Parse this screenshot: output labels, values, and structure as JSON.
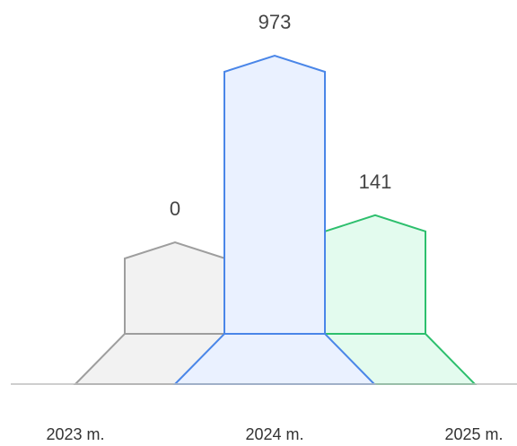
{
  "chart_data": {
    "type": "bar",
    "categories": [
      "2023 m.",
      "2024 m.",
      "2025 m."
    ],
    "values": [
      0,
      973,
      141
    ],
    "title": "",
    "xlabel": "",
    "ylabel": "",
    "grid": false,
    "colors": {
      "2023 m.": {
        "stroke": "#9e9e9e",
        "fill": "#f2f2f2"
      },
      "2024 m.": {
        "stroke": "#4a86e8",
        "fill": "#eaf1ff"
      },
      "2025 m.": {
        "stroke": "#2dbf6d",
        "fill": "#e3fbee"
      }
    }
  }
}
